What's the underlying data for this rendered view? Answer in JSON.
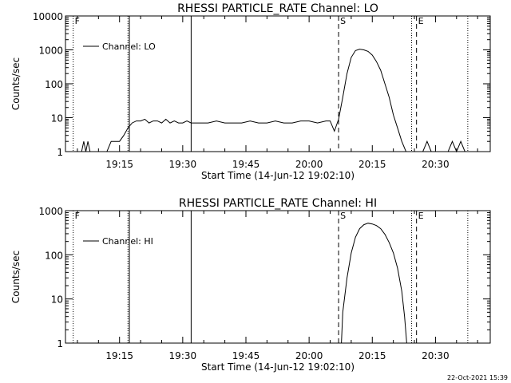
{
  "chart_data": [
    {
      "type": "line",
      "title": "RHESSI PARTICLE_RATE Channel: LO",
      "xlabel": "Start Time (14-Jun-12 19:02:10)",
      "ylabel": "Counts/sec",
      "y_scale": "log",
      "ylim": [
        1,
        10000
      ],
      "xlim": [
        "19:02:10",
        "20:43:00"
      ],
      "x_ticks": [
        "19:15",
        "19:30",
        "19:45",
        "20:00",
        "20:15",
        "20:30"
      ],
      "y_ticks": [
        "1",
        "10",
        "100",
        "1000",
        "10000"
      ],
      "grid": false,
      "legend": {
        "position": "top-left",
        "entries": [
          "Channel: LO"
        ]
      },
      "markers": [
        {
          "label": "F",
          "time": "19:04:00",
          "style": "dotted"
        },
        {
          "label": "",
          "time": "19:17:00",
          "style": "dotted"
        },
        {
          "label": "",
          "time": "19:17:20",
          "style": "solid"
        },
        {
          "label": "",
          "time": "19:32:00",
          "style": "solid"
        },
        {
          "label": "S",
          "time": "20:07:00",
          "style": "dashed"
        },
        {
          "label": "",
          "time": "20:24:20",
          "style": "dotted"
        },
        {
          "label": "E",
          "time": "20:25:30",
          "style": "dashed"
        },
        {
          "label": "",
          "time": "20:37:40",
          "style": "dotted"
        }
      ],
      "series": [
        {
          "name": "Channel: LO",
          "x": [
            "19:06:00",
            "19:06:30",
            "19:07:00",
            "19:07:30",
            "19:08:00",
            "19:08:30",
            "19:09:00",
            "19:10:00",
            "19:11:00",
            "19:12:00",
            "19:13:00",
            "19:13:30",
            "19:14:00",
            "19:15:00",
            "19:16:00",
            "19:17:00",
            "19:18:00",
            "19:19:00",
            "19:20:00",
            "19:21:00",
            "19:22:00",
            "19:23:00",
            "19:24:00",
            "19:25:00",
            "19:26:00",
            "19:27:00",
            "19:28:00",
            "19:29:00",
            "19:30:00",
            "19:31:00",
            "19:32:00",
            "19:34:00",
            "19:36:00",
            "19:38:00",
            "19:40:00",
            "19:42:00",
            "19:44:00",
            "19:46:00",
            "19:48:00",
            "19:50:00",
            "19:52:00",
            "19:54:00",
            "19:56:00",
            "19:58:00",
            "20:00:00",
            "20:02:00",
            "20:04:00",
            "20:05:00",
            "20:06:00",
            "20:07:00",
            "20:08:00",
            "20:09:00",
            "20:10:00",
            "20:11:00",
            "20:12:00",
            "20:13:00",
            "20:14:00",
            "20:15:00",
            "20:16:00",
            "20:17:00",
            "20:18:00",
            "20:19:00",
            "20:20:00",
            "20:21:00",
            "20:22:00",
            "20:23:00",
            "20:24:00",
            "20:25:00",
            "20:26:00",
            "20:27:00",
            "20:28:00",
            "20:29:00",
            "20:30:00",
            "20:31:00",
            "20:32:00",
            "20:33:00",
            "20:34:00",
            "20:35:00",
            "20:36:00",
            "20:37:00"
          ],
          "y": [
            1,
            2,
            1,
            2,
            1,
            1,
            1,
            1,
            1,
            1,
            2,
            2,
            2,
            2,
            3,
            5,
            7,
            8,
            8,
            9,
            7,
            8,
            8,
            7,
            9,
            7,
            8,
            7,
            7,
            8,
            7,
            7,
            7,
            8,
            7,
            7,
            7,
            8,
            7,
            7,
            8,
            7,
            7,
            8,
            8,
            7,
            8,
            8,
            4,
            9,
            40,
            200,
            600,
            950,
            1050,
            1000,
            900,
            700,
            450,
            250,
            100,
            40,
            12,
            5,
            2,
            1,
            1,
            1,
            1,
            1,
            2,
            1,
            1,
            1,
            1,
            1,
            2,
            1,
            2,
            1
          ]
        }
      ]
    },
    {
      "type": "line",
      "title": "RHESSI PARTICLE_RATE Channel: HI",
      "xlabel": "Start Time (14-Jun-12 19:02:10)",
      "ylabel": "Counts/sec",
      "y_scale": "log",
      "ylim": [
        1,
        1000
      ],
      "xlim": [
        "19:02:10",
        "20:43:00"
      ],
      "x_ticks": [
        "19:15",
        "19:30",
        "19:45",
        "20:00",
        "20:15",
        "20:30"
      ],
      "y_ticks": [
        "1",
        "10",
        "100",
        "1000"
      ],
      "grid": false,
      "legend": {
        "position": "top-left",
        "entries": [
          "Channel: HI"
        ]
      },
      "markers": [
        {
          "label": "F",
          "time": "19:04:00",
          "style": "dotted"
        },
        {
          "label": "",
          "time": "19:17:00",
          "style": "dotted"
        },
        {
          "label": "",
          "time": "19:17:20",
          "style": "solid"
        },
        {
          "label": "",
          "time": "19:32:00",
          "style": "solid"
        },
        {
          "label": "S",
          "time": "20:07:00",
          "style": "dashed"
        },
        {
          "label": "",
          "time": "20:24:20",
          "style": "dotted"
        },
        {
          "label": "E",
          "time": "20:25:30",
          "style": "dashed"
        },
        {
          "label": "",
          "time": "20:37:40",
          "style": "dotted"
        }
      ],
      "series": [
        {
          "name": "Channel: HI",
          "x": [
            "20:07:40",
            "20:08:00",
            "20:09:00",
            "20:10:00",
            "20:11:00",
            "20:12:00",
            "20:13:00",
            "20:14:00",
            "20:15:00",
            "20:16:00",
            "20:17:00",
            "20:18:00",
            "20:19:00",
            "20:20:00",
            "20:21:00",
            "20:22:00",
            "20:22:40",
            "20:23:10"
          ],
          "y": [
            1,
            5,
            30,
            110,
            250,
            390,
            480,
            520,
            500,
            460,
            390,
            290,
            190,
            110,
            50,
            15,
            4,
            1
          ]
        }
      ]
    }
  ],
  "footer": {
    "timestamp": "22-Oct-2021 15:39"
  }
}
